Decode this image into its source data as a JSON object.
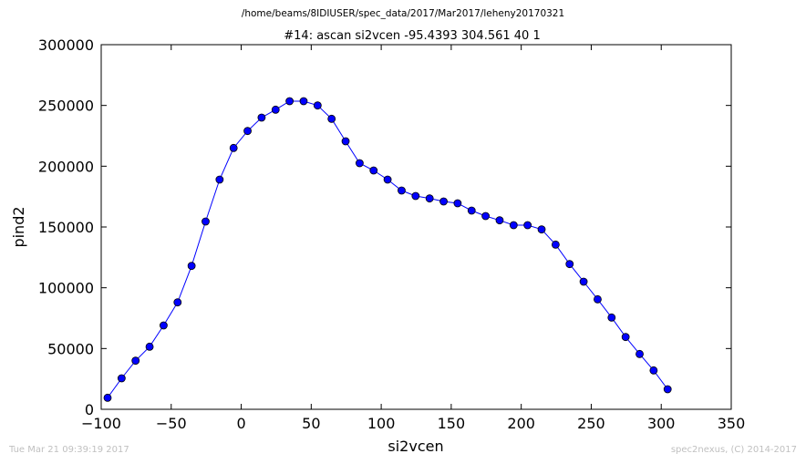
{
  "subtitle": "/home/beams/8IDIUSER/spec_data/2017/Mar2017/leheny20170321",
  "footer": {
    "timestamp": "Tue Mar 21 09:39:19 2017",
    "credit": "spec2nexus, (C) 2014-2017"
  },
  "colors": {
    "series": "#0000ff",
    "footer_text": "#c0c0c0"
  },
  "chart_data": {
    "type": "line",
    "title": "#14: ascan  si2vcen -95.4393 304.561  40 1",
    "xlabel": "si2vcen",
    "ylabel": "pind2",
    "xlim": [
      -100,
      350
    ],
    "ylim": [
      0,
      300000
    ],
    "xticks": [
      -100,
      -50,
      0,
      50,
      100,
      150,
      200,
      250,
      300,
      350
    ],
    "xtick_labels": [
      "−100",
      "−50",
      "0",
      "50",
      "100",
      "150",
      "200",
      "250",
      "300",
      "350"
    ],
    "yticks": [
      0,
      50000,
      100000,
      150000,
      200000,
      250000,
      300000
    ],
    "ytick_labels": [
      "0",
      "50000",
      "100000",
      "150000",
      "200000",
      "250000",
      "300000"
    ],
    "grid": false,
    "legend": "none",
    "marker": "circle",
    "series": [
      {
        "x": [
          -95.44,
          -85.44,
          -75.44,
          -65.44,
          -55.44,
          -45.44,
          -35.44,
          -25.44,
          -15.44,
          -5.44,
          4.56,
          14.56,
          24.56,
          34.56,
          44.56,
          54.56,
          64.56,
          74.56,
          84.56,
          94.56,
          104.56,
          114.56,
          124.56,
          134.56,
          144.56,
          154.56,
          164.56,
          174.56,
          184.56,
          194.56,
          204.56,
          214.56,
          224.56,
          234.56,
          244.56,
          254.56,
          264.56,
          274.56,
          284.56,
          294.56,
          304.56
        ],
        "values": [
          9500,
          25500,
          40000,
          51500,
          69000,
          88000,
          118000,
          154500,
          189000,
          215000,
          229000,
          240000,
          246500,
          253500,
          253500,
          250000,
          239000,
          220500,
          202500,
          196500,
          189000,
          180000,
          175500,
          173500,
          171000,
          169500,
          163500,
          159000,
          155500,
          151500,
          151500,
          148000,
          135500,
          119500,
          105000,
          90500,
          75500,
          59500,
          45500,
          32000,
          16500
        ]
      }
    ]
  }
}
